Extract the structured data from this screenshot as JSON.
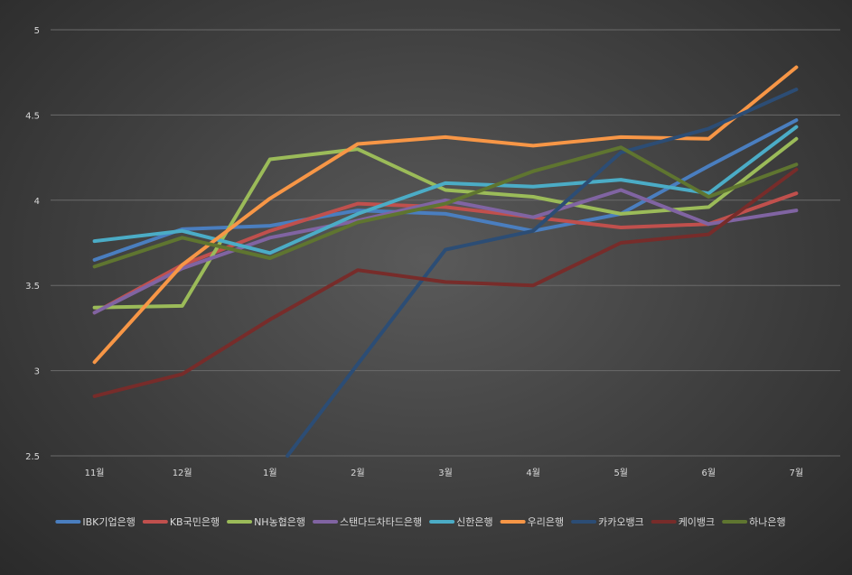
{
  "chart_data": {
    "type": "line",
    "title": "",
    "xlabel": "",
    "ylabel": "",
    "categories": [
      "11월",
      "12월",
      "1월",
      "2월",
      "3월",
      "4월",
      "5월",
      "6월",
      "7월"
    ],
    "ylim": [
      2.5,
      5
    ],
    "yticks": [
      "2.5",
      "3",
      "3.5",
      "4",
      "4.5",
      "5"
    ],
    "grid": true,
    "legend": "bottom",
    "series": [
      {
        "name": "IBK기업은행",
        "color": "#4a7ebf",
        "values": [
          3.65,
          3.83,
          3.85,
          3.94,
          3.92,
          3.82,
          3.92,
          4.2,
          4.47
        ]
      },
      {
        "name": "KB국민은행",
        "color": "#c0504d",
        "values": [
          3.34,
          3.62,
          3.82,
          3.98,
          3.96,
          3.9,
          3.84,
          3.86,
          4.04
        ]
      },
      {
        "name": "NH농협은행",
        "color": "#9bbb59",
        "values": [
          3.37,
          3.38,
          4.24,
          4.3,
          4.06,
          4.02,
          3.92,
          3.96,
          4.36
        ]
      },
      {
        "name": "스탠다드차타드은행",
        "color": "#8064a2",
        "values": [
          3.34,
          3.6,
          3.78,
          3.88,
          4.0,
          3.9,
          4.06,
          3.86,
          3.94
        ]
      },
      {
        "name": "신한은행",
        "color": "#4bacc6",
        "values": [
          3.76,
          3.82,
          3.69,
          3.92,
          4.1,
          4.08,
          4.12,
          4.04,
          4.43
        ]
      },
      {
        "name": "우리은행",
        "color": "#f79646",
        "values": [
          3.05,
          3.62,
          4.01,
          4.33,
          4.37,
          4.32,
          4.37,
          4.36,
          4.78
        ]
      },
      {
        "name": "카카오뱅크",
        "color": "#2c4d75",
        "values": [
          null,
          null,
          null,
          null,
          3.71,
          3.82,
          4.28,
          4.42,
          4.65
        ],
        "start": {
          "x": 2.7,
          "y": 2.5
        }
      },
      {
        "name": "케이뱅크",
        "color": "#772c2a",
        "values": [
          2.85,
          2.98,
          3.3,
          3.59,
          3.52,
          3.5,
          3.75,
          3.8,
          4.18
        ]
      },
      {
        "name": "하나은행",
        "color": "#5f7530",
        "values": [
          3.61,
          3.78,
          3.66,
          3.87,
          3.98,
          4.17,
          4.31,
          4.02,
          4.21
        ]
      }
    ]
  }
}
